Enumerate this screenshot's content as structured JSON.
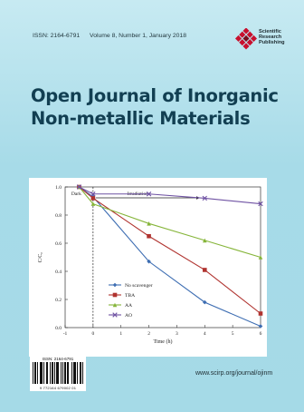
{
  "header": {
    "issn": "ISSN: 2164-6791",
    "volume": "Volume 8, Number 1, January 2018"
  },
  "publisher": {
    "name_line1": "Scientific",
    "name_line2": "Research",
    "name_line3": "Publishing",
    "logo_color": "#c8102e"
  },
  "journal": {
    "title_line1": "Open Journal of Inorganic",
    "title_line2": "Non-metallic Materials",
    "url": "www.scirp.org/journal/ojinm"
  },
  "barcode": {
    "issn_label": "ISSN: 2164-6791",
    "number": "9 772164 679002   01"
  },
  "chart_data": {
    "type": "line",
    "xlabel": "Time (h)",
    "ylabel": "C/C₀",
    "xlim": [
      -1,
      6
    ],
    "ylim": [
      0.0,
      1.0
    ],
    "x_ticks": [
      "-1",
      "0",
      "1",
      "2",
      "3",
      "4",
      "5",
      "6"
    ],
    "y_ticks": [
      "0.0",
      "0.2",
      "0.4",
      "0.6",
      "0.8",
      "1.0"
    ],
    "annotations": [
      "Dark",
      "Irradiation"
    ],
    "dark_boundary_x": 0,
    "x": [
      -0.5,
      0,
      2,
      4,
      6
    ],
    "series": [
      {
        "name": "No scavenger",
        "color": "#3d6db2",
        "marker": "diamond",
        "values": [
          1.0,
          0.93,
          0.47,
          0.18,
          0.01
        ]
      },
      {
        "name": "TBA",
        "color": "#b0332f",
        "marker": "square",
        "values": [
          1.0,
          0.92,
          0.65,
          0.41,
          0.1
        ]
      },
      {
        "name": "AA",
        "color": "#86b53a",
        "marker": "triangle",
        "values": [
          1.0,
          0.88,
          0.74,
          0.62,
          0.5
        ]
      },
      {
        "name": "AO",
        "color": "#6f52a3",
        "marker": "x",
        "values": [
          1.0,
          0.95,
          0.95,
          0.92,
          0.88
        ]
      }
    ],
    "grid": false,
    "legend_position": "bottom-left"
  }
}
